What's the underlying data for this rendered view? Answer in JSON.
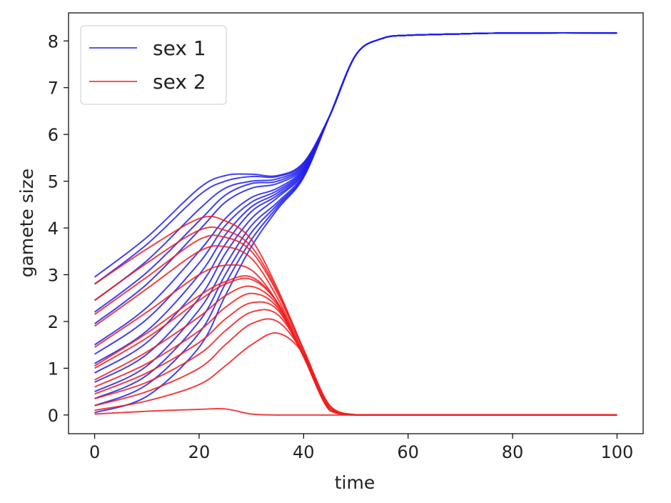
{
  "chart_data": {
    "type": "line",
    "xlabel": "time",
    "ylabel": "gamete size",
    "xlim": [
      -5,
      105
    ],
    "ylim": [
      -0.4,
      8.6
    ],
    "xticks": [
      0,
      20,
      40,
      60,
      80,
      100
    ],
    "yticks": [
      0,
      1,
      2,
      3,
      4,
      5,
      6,
      7,
      8
    ],
    "legend": {
      "position": "top-left",
      "entries": [
        {
          "label": "sex 1",
          "color": "#1f1fef"
        },
        {
          "label": "sex 2",
          "color": "#ef1f1f"
        }
      ]
    },
    "colors": {
      "sex1": "#1f1fef",
      "sex2": "#ef1f1f"
    },
    "time": [
      0,
      10,
      20,
      25,
      30,
      35,
      40,
      45,
      50,
      55,
      60,
      70,
      80,
      100
    ],
    "series": [
      {
        "name": "sex 1",
        "values": [
          2.95,
          3.8,
          4.85,
          5.12,
          5.15,
          5.12,
          5.4,
          6.4,
          7.7,
          8.05,
          8.12,
          8.15,
          8.17,
          8.17
        ]
      },
      {
        "name": "sex 1",
        "values": [
          2.8,
          3.65,
          4.7,
          5.0,
          5.1,
          5.1,
          5.38,
          6.4,
          7.7,
          8.05,
          8.12,
          8.15,
          8.17,
          8.17
        ]
      },
      {
        "name": "sex 1",
        "values": [
          2.45,
          3.3,
          4.4,
          4.85,
          5.0,
          5.05,
          5.35,
          6.4,
          7.7,
          8.05,
          8.12,
          8.15,
          8.17,
          8.17
        ]
      },
      {
        "name": "sex 1",
        "values": [
          2.2,
          3.05,
          4.15,
          4.7,
          4.95,
          5.0,
          5.33,
          6.4,
          7.7,
          8.05,
          8.12,
          8.15,
          8.17,
          8.17
        ]
      },
      {
        "name": "sex 1",
        "values": [
          1.95,
          2.8,
          3.95,
          4.55,
          4.85,
          4.95,
          5.3,
          6.4,
          7.7,
          8.05,
          8.12,
          8.15,
          8.17,
          8.17
        ]
      },
      {
        "name": "sex 1",
        "values": [
          1.5,
          2.3,
          3.5,
          4.2,
          4.65,
          4.85,
          5.28,
          6.4,
          7.7,
          8.05,
          8.12,
          8.15,
          8.17,
          8.17
        ]
      },
      {
        "name": "sex 1",
        "values": [
          1.3,
          2.05,
          3.25,
          4.05,
          4.55,
          4.8,
          5.25,
          6.4,
          7.7,
          8.05,
          8.12,
          8.15,
          8.17,
          8.17
        ]
      },
      {
        "name": "sex 1",
        "values": [
          1.1,
          1.8,
          3.0,
          3.85,
          4.45,
          4.75,
          5.23,
          6.4,
          7.7,
          8.05,
          8.12,
          8.15,
          8.17,
          8.17
        ]
      },
      {
        "name": "sex 1",
        "values": [
          0.9,
          1.55,
          2.75,
          3.65,
          4.35,
          4.7,
          5.2,
          6.4,
          7.7,
          8.05,
          8.12,
          8.15,
          8.17,
          8.17
        ]
      },
      {
        "name": "sex 1",
        "values": [
          0.7,
          1.3,
          2.5,
          3.45,
          4.2,
          4.65,
          5.18,
          6.4,
          7.7,
          8.05,
          8.12,
          8.15,
          8.17,
          8.17
        ]
      },
      {
        "name": "sex 1",
        "values": [
          0.5,
          1.05,
          2.25,
          3.2,
          4.05,
          4.55,
          5.15,
          6.4,
          7.7,
          8.05,
          8.12,
          8.15,
          8.17,
          8.17
        ]
      },
      {
        "name": "sex 1",
        "values": [
          0.35,
          0.85,
          2.0,
          3.0,
          3.9,
          4.5,
          5.12,
          6.4,
          7.7,
          8.05,
          8.12,
          8.15,
          8.17,
          8.17
        ]
      },
      {
        "name": "sex 1",
        "values": [
          0.2,
          0.65,
          1.75,
          2.8,
          3.75,
          4.45,
          5.1,
          6.4,
          7.7,
          8.05,
          8.12,
          8.15,
          8.17,
          8.17
        ]
      },
      {
        "name": "sex 1",
        "values": [
          0.05,
          0.4,
          1.45,
          2.55,
          3.6,
          4.4,
          5.08,
          6.4,
          7.7,
          8.05,
          8.12,
          8.15,
          8.17,
          8.17
        ]
      },
      {
        "name": "sex 2",
        "values": [
          2.8,
          3.55,
          4.2,
          4.15,
          3.75,
          2.7,
          1.4,
          0.2,
          0,
          0,
          0,
          0,
          0,
          0
        ]
      },
      {
        "name": "sex 2",
        "values": [
          2.45,
          3.25,
          3.95,
          3.95,
          3.6,
          2.65,
          1.4,
          0.2,
          0,
          0,
          0,
          0,
          0,
          0
        ]
      },
      {
        "name": "sex 2",
        "values": [
          2.15,
          2.95,
          3.75,
          3.8,
          3.5,
          2.6,
          1.35,
          0.15,
          0,
          0,
          0,
          0,
          0,
          0
        ]
      },
      {
        "name": "sex 2",
        "values": [
          1.9,
          2.7,
          3.5,
          3.6,
          3.35,
          2.5,
          1.3,
          0.15,
          0,
          0,
          0,
          0,
          0,
          0
        ]
      },
      {
        "name": "sex 2",
        "values": [
          1.45,
          2.2,
          3.0,
          3.2,
          3.1,
          2.4,
          1.25,
          0.1,
          0,
          0,
          0,
          0,
          0,
          0
        ]
      },
      {
        "name": "sex 2",
        "values": [
          1.05,
          1.75,
          2.55,
          2.85,
          2.95,
          2.4,
          1.25,
          0.1,
          0,
          0,
          0,
          0,
          0,
          0
        ]
      },
      {
        "name": "sex 2",
        "values": [
          1.0,
          1.65,
          2.45,
          2.8,
          2.9,
          2.4,
          1.25,
          0.1,
          0,
          0,
          0,
          0,
          0,
          0
        ]
      },
      {
        "name": "sex 2",
        "values": [
          0.75,
          1.35,
          2.1,
          2.55,
          2.75,
          2.35,
          1.25,
          0.1,
          0,
          0,
          0,
          0,
          0,
          0
        ]
      },
      {
        "name": "sex 2",
        "values": [
          0.6,
          1.1,
          1.8,
          2.3,
          2.6,
          2.3,
          1.25,
          0.1,
          0,
          0,
          0,
          0,
          0,
          0
        ]
      },
      {
        "name": "sex 2",
        "values": [
          0.45,
          0.9,
          1.55,
          2.05,
          2.4,
          2.25,
          1.25,
          0.1,
          0,
          0,
          0,
          0,
          0,
          0
        ]
      },
      {
        "name": "sex 2",
        "values": [
          0.35,
          0.7,
          1.3,
          1.8,
          2.2,
          2.15,
          1.3,
          0.1,
          0,
          0,
          0,
          0,
          0,
          0
        ]
      },
      {
        "name": "sex 2",
        "values": [
          0.2,
          0.5,
          1.0,
          1.5,
          1.95,
          2.0,
          1.3,
          0.1,
          0,
          0,
          0,
          0,
          0,
          0
        ]
      },
      {
        "name": "sex 2",
        "values": [
          0.1,
          0.3,
          0.65,
          1.05,
          1.5,
          1.75,
          1.3,
          0.15,
          0,
          0,
          0,
          0,
          0,
          0
        ]
      },
      {
        "name": "sex 2",
        "values": [
          0.02,
          0.08,
          0.12,
          0.13,
          0.02,
          0,
          0,
          0,
          0,
          0,
          0,
          0,
          0,
          0
        ]
      }
    ]
  }
}
